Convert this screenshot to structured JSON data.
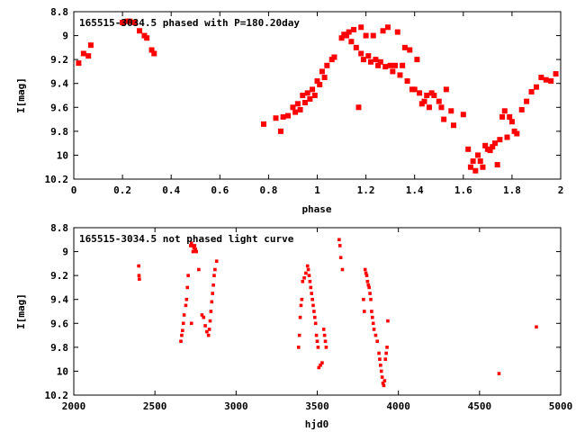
{
  "chart_data": [
    {
      "type": "scatter",
      "title": "165515-3034.5 phased with P=180.20day",
      "xlabel": "phase",
      "ylabel": "I[mag]",
      "xlim": [
        0,
        2
      ],
      "ylim": [
        10.2,
        8.8
      ],
      "y_inverted": true,
      "xticks": [
        0,
        0.2,
        0.4,
        0.6,
        0.8,
        1,
        1.2,
        1.4,
        1.6,
        1.8,
        2
      ],
      "xtick_labels": [
        "0",
        "0.2",
        "0.4",
        "0.6",
        "0.8",
        "1",
        "1.2",
        "1.4",
        "1.6",
        "1.8",
        "2"
      ],
      "yticks": [
        8.8,
        9,
        9.2,
        9.4,
        9.6,
        9.8,
        10,
        10.2
      ],
      "ytick_labels": [
        "8.8",
        "9",
        "9.2",
        "9.4",
        "9.6",
        "9.8",
        "10",
        "10.2"
      ],
      "marker_color": "#ff0000",
      "grid": false,
      "points": [
        [
          0.02,
          9.23
        ],
        [
          0.04,
          9.15
        ],
        [
          0.06,
          9.17
        ],
        [
          0.07,
          9.08
        ],
        [
          0.2,
          8.89
        ],
        [
          0.22,
          8.88
        ],
        [
          0.23,
          8.88
        ],
        [
          0.25,
          8.89
        ],
        [
          0.27,
          8.96
        ],
        [
          0.29,
          9.0
        ],
        [
          0.3,
          9.02
        ],
        [
          0.32,
          9.12
        ],
        [
          0.33,
          9.15
        ],
        [
          0.78,
          9.74
        ],
        [
          0.83,
          9.69
        ],
        [
          0.85,
          9.8
        ],
        [
          0.86,
          9.68
        ],
        [
          0.88,
          9.67
        ],
        [
          0.9,
          9.6
        ],
        [
          0.91,
          9.64
        ],
        [
          0.92,
          9.57
        ],
        [
          0.93,
          9.62
        ],
        [
          0.94,
          9.5
        ],
        [
          0.95,
          9.56
        ],
        [
          0.96,
          9.48
        ],
        [
          0.97,
          9.53
        ],
        [
          0.98,
          9.45
        ],
        [
          0.99,
          9.5
        ],
        [
          1.0,
          9.38
        ],
        [
          1.01,
          9.41
        ],
        [
          1.02,
          9.3
        ],
        [
          1.03,
          9.35
        ],
        [
          1.04,
          9.25
        ],
        [
          1.06,
          9.2
        ],
        [
          1.07,
          9.18
        ],
        [
          1.1,
          9.02
        ],
        [
          1.11,
          8.99
        ],
        [
          1.12,
          9.0
        ],
        [
          1.13,
          8.97
        ],
        [
          1.14,
          9.05
        ],
        [
          1.15,
          8.95
        ],
        [
          1.16,
          9.1
        ],
        [
          1.17,
          9.6
        ],
        [
          1.18,
          9.15
        ],
        [
          1.18,
          8.93
        ],
        [
          1.19,
          9.2
        ],
        [
          1.2,
          9.0
        ],
        [
          1.21,
          9.17
        ],
        [
          1.22,
          9.22
        ],
        [
          1.23,
          9.0
        ],
        [
          1.24,
          9.2
        ],
        [
          1.25,
          9.25
        ],
        [
          1.26,
          9.22
        ],
        [
          1.27,
          8.96
        ],
        [
          1.28,
          9.26
        ],
        [
          1.29,
          8.93
        ],
        [
          1.3,
          9.25
        ],
        [
          1.31,
          9.3
        ],
        [
          1.32,
          9.25
        ],
        [
          1.33,
          8.97
        ],
        [
          1.34,
          9.33
        ],
        [
          1.35,
          9.25
        ],
        [
          1.36,
          9.1
        ],
        [
          1.37,
          9.38
        ],
        [
          1.38,
          9.12
        ],
        [
          1.39,
          9.45
        ],
        [
          1.4,
          9.45
        ],
        [
          1.41,
          9.2
        ],
        [
          1.42,
          9.48
        ],
        [
          1.43,
          9.57
        ],
        [
          1.44,
          9.55
        ],
        [
          1.45,
          9.5
        ],
        [
          1.46,
          9.6
        ],
        [
          1.47,
          9.48
        ],
        [
          1.48,
          9.5
        ],
        [
          1.5,
          9.55
        ],
        [
          1.51,
          9.6
        ],
        [
          1.52,
          9.7
        ],
        [
          1.53,
          9.45
        ],
        [
          1.55,
          9.63
        ],
        [
          1.56,
          9.75
        ],
        [
          1.6,
          9.66
        ],
        [
          1.62,
          9.95
        ],
        [
          1.63,
          10.1
        ],
        [
          1.64,
          10.05
        ],
        [
          1.65,
          10.13
        ],
        [
          1.66,
          10.0
        ],
        [
          1.67,
          10.05
        ],
        [
          1.68,
          10.1
        ],
        [
          1.69,
          9.92
        ],
        [
          1.7,
          9.95
        ],
        [
          1.71,
          9.96
        ],
        [
          1.72,
          9.93
        ],
        [
          1.73,
          9.9
        ],
        [
          1.74,
          10.08
        ],
        [
          1.75,
          9.87
        ],
        [
          1.76,
          9.68
        ],
        [
          1.77,
          9.63
        ],
        [
          1.78,
          9.85
        ],
        [
          1.79,
          9.68
        ],
        [
          1.8,
          9.72
        ],
        [
          1.81,
          9.8
        ],
        [
          1.82,
          9.82
        ],
        [
          1.84,
          9.62
        ],
        [
          1.86,
          9.55
        ],
        [
          1.88,
          9.47
        ],
        [
          1.9,
          9.43
        ],
        [
          1.92,
          9.35
        ],
        [
          1.94,
          9.37
        ],
        [
          1.96,
          9.38
        ],
        [
          1.98,
          9.32
        ]
      ]
    },
    {
      "type": "scatter",
      "title": "165515-3034.5 not phased light curve",
      "xlabel": "hjd0",
      "ylabel": "I[mag]",
      "xlim": [
        2000,
        5000
      ],
      "ylim": [
        10.2,
        8.8
      ],
      "y_inverted": true,
      "xticks": [
        2000,
        2500,
        3000,
        3500,
        4000,
        4500,
        5000
      ],
      "xtick_labels": [
        "2000",
        "2500",
        "3000",
        "3500",
        "4000",
        "4500",
        "5000"
      ],
      "yticks": [
        8.8,
        9,
        9.2,
        9.4,
        9.6,
        9.8,
        10,
        10.2
      ],
      "ytick_labels": [
        "8.8",
        "9",
        "9.2",
        "9.4",
        "9.6",
        "9.8",
        "10",
        "10.2"
      ],
      "marker_color": "#ff0000",
      "grid": false,
      "points": [
        [
          2400,
          9.12
        ],
        [
          2402,
          9.2
        ],
        [
          2404,
          9.23
        ],
        [
          2660,
          9.75
        ],
        [
          2665,
          9.7
        ],
        [
          2670,
          9.66
        ],
        [
          2675,
          9.6
        ],
        [
          2680,
          9.53
        ],
        [
          2690,
          9.45
        ],
        [
          2695,
          9.4
        ],
        [
          2700,
          9.3
        ],
        [
          2705,
          9.2
        ],
        [
          2720,
          8.95
        ],
        [
          2725,
          8.93
        ],
        [
          2730,
          8.95
        ],
        [
          2735,
          9.0
        ],
        [
          2740,
          8.97
        ],
        [
          2745,
          8.95
        ],
        [
          2750,
          8.98
        ],
        [
          2755,
          9.0
        ],
        [
          2725,
          9.6
        ],
        [
          2770,
          9.15
        ],
        [
          2790,
          9.53
        ],
        [
          2800,
          9.55
        ],
        [
          2810,
          9.62
        ],
        [
          2820,
          9.67
        ],
        [
          2830,
          9.7
        ],
        [
          2835,
          9.65
        ],
        [
          2840,
          9.58
        ],
        [
          2845,
          9.5
        ],
        [
          2850,
          9.42
        ],
        [
          2855,
          9.35
        ],
        [
          2860,
          9.28
        ],
        [
          2865,
          9.2
        ],
        [
          2870,
          9.15
        ],
        [
          2880,
          9.08
        ],
        [
          3385,
          9.8
        ],
        [
          3390,
          9.7
        ],
        [
          3395,
          9.55
        ],
        [
          3400,
          9.45
        ],
        [
          3405,
          9.4
        ],
        [
          3410,
          9.25
        ],
        [
          3420,
          9.22
        ],
        [
          3430,
          9.18
        ],
        [
          3440,
          9.12
        ],
        [
          3445,
          9.15
        ],
        [
          3450,
          9.2
        ],
        [
          3455,
          9.25
        ],
        [
          3460,
          9.3
        ],
        [
          3465,
          9.35
        ],
        [
          3470,
          9.4
        ],
        [
          3475,
          9.45
        ],
        [
          3480,
          9.5
        ],
        [
          3485,
          9.55
        ],
        [
          3490,
          9.6
        ],
        [
          3495,
          9.7
        ],
        [
          3500,
          9.75
        ],
        [
          3505,
          9.8
        ],
        [
          3510,
          9.97
        ],
        [
          3520,
          9.95
        ],
        [
          3530,
          9.93
        ],
        [
          3540,
          9.65
        ],
        [
          3545,
          9.7
        ],
        [
          3550,
          9.75
        ],
        [
          3555,
          9.8
        ],
        [
          3635,
          8.9
        ],
        [
          3640,
          8.95
        ],
        [
          3645,
          9.05
        ],
        [
          3655,
          9.15
        ],
        [
          3785,
          9.4
        ],
        [
          3790,
          9.5
        ],
        [
          3795,
          9.15
        ],
        [
          3800,
          9.18
        ],
        [
          3805,
          9.2
        ],
        [
          3810,
          9.25
        ],
        [
          3815,
          9.28
        ],
        [
          3820,
          9.3
        ],
        [
          3825,
          9.35
        ],
        [
          3830,
          9.4
        ],
        [
          3835,
          9.5
        ],
        [
          3840,
          9.55
        ],
        [
          3845,
          9.6
        ],
        [
          3850,
          9.65
        ],
        [
          3860,
          9.7
        ],
        [
          3870,
          9.75
        ],
        [
          3880,
          9.85
        ],
        [
          3885,
          9.9
        ],
        [
          3890,
          9.95
        ],
        [
          3895,
          10.0
        ],
        [
          3900,
          10.05
        ],
        [
          3905,
          10.1
        ],
        [
          3910,
          10.12
        ],
        [
          3915,
          10.08
        ],
        [
          3920,
          9.9
        ],
        [
          3925,
          9.85
        ],
        [
          3930,
          9.8
        ],
        [
          3935,
          9.58
        ],
        [
          4620,
          10.02
        ],
        [
          4850,
          9.63
        ]
      ]
    }
  ]
}
